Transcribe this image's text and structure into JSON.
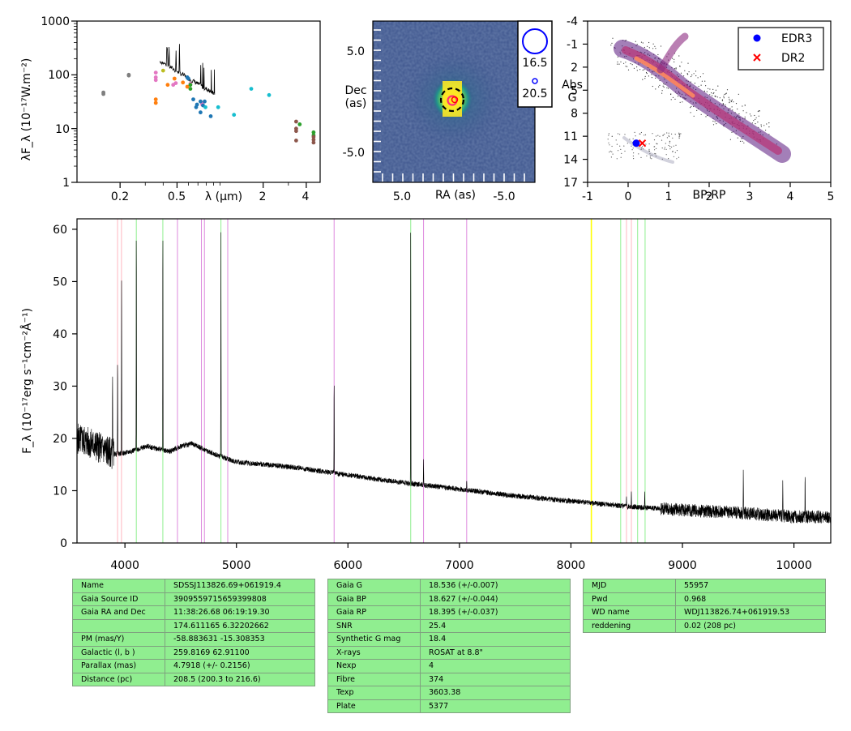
{
  "sed_plot": {
    "ylabel": "λF_λ (10⁻¹⁷W.m⁻²)",
    "xlabel": "λ (μm)",
    "y_ticks": [
      "1000",
      "100",
      "10",
      "1"
    ],
    "x_ticks": [
      "0.2",
      "0.5",
      "2",
      "4"
    ],
    "chart_data": {
      "type": "scatter",
      "x_scale": "log",
      "y_scale": "log",
      "xlim": [
        0.1,
        5
      ],
      "ylim": [
        1,
        1000
      ],
      "series": [
        {
          "color": "#7f7f7f",
          "points": [
            [
              0.153,
              44
            ],
            [
              0.153,
              47
            ],
            [
              0.23,
              97
            ],
            [
              0.23,
              100
            ]
          ]
        },
        {
          "color": "#e377c2",
          "points": [
            [
              0.355,
              80
            ],
            [
              0.355,
              90
            ],
            [
              0.355,
              110
            ],
            [
              0.47,
              65
            ],
            [
              0.49,
              70
            ],
            [
              0.62,
              68
            ],
            [
              0.75,
              30
            ],
            [
              0.75,
              28
            ]
          ]
        },
        {
          "color": "#ff7f0e",
          "points": [
            [
              0.355,
              35
            ],
            [
              0.355,
              30
            ],
            [
              0.43,
              65
            ],
            [
              0.48,
              85
            ],
            [
              0.55,
              72
            ],
            [
              0.59,
              60
            ]
          ]
        },
        {
          "color": "#bcbd22",
          "points": [
            [
              0.4,
              120
            ]
          ]
        },
        {
          "color": "#2ca02c",
          "points": [
            [
              0.62,
              65
            ],
            [
              0.62,
              55
            ],
            [
              3.6,
              12
            ],
            [
              4.5,
              8.5
            ],
            [
              4.5,
              7.5
            ]
          ]
        },
        {
          "color": "#1f77b4",
          "points": [
            [
              0.59,
              90
            ],
            [
              0.6,
              85
            ],
            [
              0.73,
              32
            ],
            [
              0.78,
              32
            ],
            [
              0.65,
              35
            ],
            [
              0.69,
              28
            ],
            [
              0.76,
              27
            ],
            [
              0.73,
              20
            ],
            [
              0.86,
              17
            ],
            [
              0.68,
              25
            ]
          ]
        },
        {
          "color": "#17becf",
          "points": [
            [
              0.79,
              25
            ],
            [
              0.97,
              25
            ],
            [
              1.25,
              18
            ],
            [
              1.65,
              55
            ],
            [
              2.2,
              42
            ]
          ]
        },
        {
          "color": "#8c564b",
          "points": [
            [
              3.4,
              13.5
            ],
            [
              3.4,
              10
            ],
            [
              3.4,
              6
            ],
            [
              4.5,
              7
            ],
            [
              4.5,
              5.5
            ],
            [
              4.5,
              6.2
            ],
            [
              3.4,
              9
            ]
          ]
        }
      ],
      "spectrum_color": "#000000"
    }
  },
  "image_panel": {
    "ylabel_line1": "Dec",
    "ylabel_line2": "(as)",
    "xlabel": "RA (as)",
    "y_ticks": [
      "5.0",
      "-5.0"
    ],
    "x_ticks": [
      "5.0",
      "-5.0"
    ],
    "legend": [
      "16.5",
      "20.5"
    ]
  },
  "hr_diagram": {
    "ylabel_line1": "Abs",
    "ylabel_line2": "G",
    "xlabel": "BP-RP",
    "y_ticks": [
      "-4",
      "-1",
      "2",
      "5",
      "8",
      "11",
      "14",
      "17"
    ],
    "x_ticks": [
      "-1",
      "0",
      "1",
      "2",
      "3",
      "4",
      "5"
    ],
    "legend": [
      {
        "label": "EDR3",
        "color": "#0000ff",
        "marker": "circle"
      },
      {
        "label": "DR2",
        "color": "#ff0000",
        "marker": "x"
      }
    ],
    "chart_data": {
      "type": "scatter",
      "xlim": [
        -1,
        5
      ],
      "ylim": [
        17,
        -4
      ],
      "series": [
        {
          "name": "EDR3",
          "points": [
            [
              0.2,
              11.9
            ]
          ]
        },
        {
          "name": "DR2",
          "points": [
            [
              0.35,
              11.9
            ]
          ]
        }
      ]
    }
  },
  "spectrum_plot": {
    "ylabel": "F_λ (10⁻¹⁷erg s⁻¹cm⁻²Å⁻¹)",
    "y_ticks": [
      "0",
      "10",
      "20",
      "30",
      "40",
      "50",
      "60"
    ],
    "x_ticks": [
      "4000",
      "5000",
      "6000",
      "7000",
      "8000",
      "9000",
      "10000"
    ],
    "chart_data": {
      "type": "line",
      "xlim": [
        3570,
        10330
      ],
      "ylim": [
        0,
        62
      ],
      "continuum": [
        [
          3570,
          20
        ],
        [
          3700,
          19
        ],
        [
          3900,
          17
        ],
        [
          4000,
          17.2
        ],
        [
          4200,
          18.5
        ],
        [
          4400,
          17.5
        ],
        [
          4500,
          18.5
        ],
        [
          4600,
          19
        ],
        [
          4800,
          17
        ],
        [
          5000,
          15.5
        ],
        [
          5500,
          14.5
        ],
        [
          6000,
          13
        ],
        [
          6500,
          11.5
        ],
        [
          7000,
          10.3
        ],
        [
          7500,
          9
        ],
        [
          8000,
          8
        ],
        [
          8500,
          7
        ],
        [
          9000,
          6.3
        ],
        [
          9500,
          5.8
        ],
        [
          10000,
          5
        ],
        [
          10330,
          5
        ]
      ],
      "emission_lines": [
        [
          3889,
          32
        ],
        [
          3934,
          35
        ],
        [
          3970,
          52
        ],
        [
          4102,
          60
        ],
        [
          4340,
          60
        ],
        [
          4861,
          60
        ],
        [
          5876,
          31
        ],
        [
          6563,
          60
        ],
        [
          6678,
          16
        ],
        [
          7065,
          12
        ],
        [
          8498,
          9
        ],
        [
          8542,
          10
        ],
        [
          8662,
          10
        ],
        [
          9546,
          14
        ],
        [
          9900,
          12
        ],
        [
          10100,
          13
        ]
      ],
      "line_markers": [
        {
          "x": 3934,
          "color": "#ffb6c1"
        },
        {
          "x": 3969,
          "color": "#ffb6c1"
        },
        {
          "x": 4102,
          "color": "#90ee90"
        },
        {
          "x": 4340,
          "color": "#90ee90"
        },
        {
          "x": 4861,
          "color": "#90ee90"
        },
        {
          "x": 6563,
          "color": "#90ee90"
        },
        {
          "x": 8446,
          "color": "#90ee90"
        },
        {
          "x": 8598,
          "color": "#90ee90"
        },
        {
          "x": 8665,
          "color": "#90ee90"
        },
        {
          "x": 4471,
          "color": "#dd88dd"
        },
        {
          "x": 4686,
          "color": "#dd88dd"
        },
        {
          "x": 4713,
          "color": "#dd88dd"
        },
        {
          "x": 4922,
          "color": "#dd88dd"
        },
        {
          "x": 5876,
          "color": "#dd88dd"
        },
        {
          "x": 6678,
          "color": "#dd88dd"
        },
        {
          "x": 7065,
          "color": "#dd88dd"
        },
        {
          "x": 8183,
          "color": "#ffff00"
        },
        {
          "x": 8498,
          "color": "#ffb6c1"
        },
        {
          "x": 8542,
          "color": "#ffb6c1"
        }
      ]
    }
  },
  "tables": {
    "left": [
      [
        "Name",
        "SDSSJ113826.69+061919.4"
      ],
      [
        "Gaia Source ID",
        "3909559715659399808"
      ],
      [
        "Gaia RA and Dec",
        "11:38:26.68    06:19:19.30"
      ],
      [
        "",
        "174.611165    6.32202662"
      ],
      [
        "PM (mas/Y)",
        "-58.883631    -15.308353"
      ],
      [
        "Galactic (l, b )",
        "259.8169    62.91100"
      ],
      [
        "Parallax (mas)",
        "4.7918 (+/- 0.2156)"
      ],
      [
        "Distance (pc)",
        "208.5 (200.3 to 216.6)"
      ]
    ],
    "middle": [
      [
        "Gaia G",
        "18.536 (+/-0.007)"
      ],
      [
        "Gaia BP",
        "18.627 (+/-0.044)"
      ],
      [
        "Gaia RP",
        "18.395 (+/-0.037)"
      ],
      [
        "SNR",
        "25.4"
      ],
      [
        "Synthetic G mag",
        "18.4"
      ],
      [
        "X-rays",
        "ROSAT at 8.8\""
      ],
      [
        "Nexp",
        "4"
      ],
      [
        "Fibre",
        "374"
      ],
      [
        "Texp",
        "3603.38"
      ],
      [
        "Plate",
        "5377"
      ]
    ],
    "right": [
      [
        "MJD",
        "55957"
      ],
      [
        "Pwd",
        "0.968"
      ],
      [
        "WD name",
        "WDJ113826.74+061919.53"
      ],
      [
        "reddening",
        "0.02 (208 pc)"
      ]
    ]
  }
}
